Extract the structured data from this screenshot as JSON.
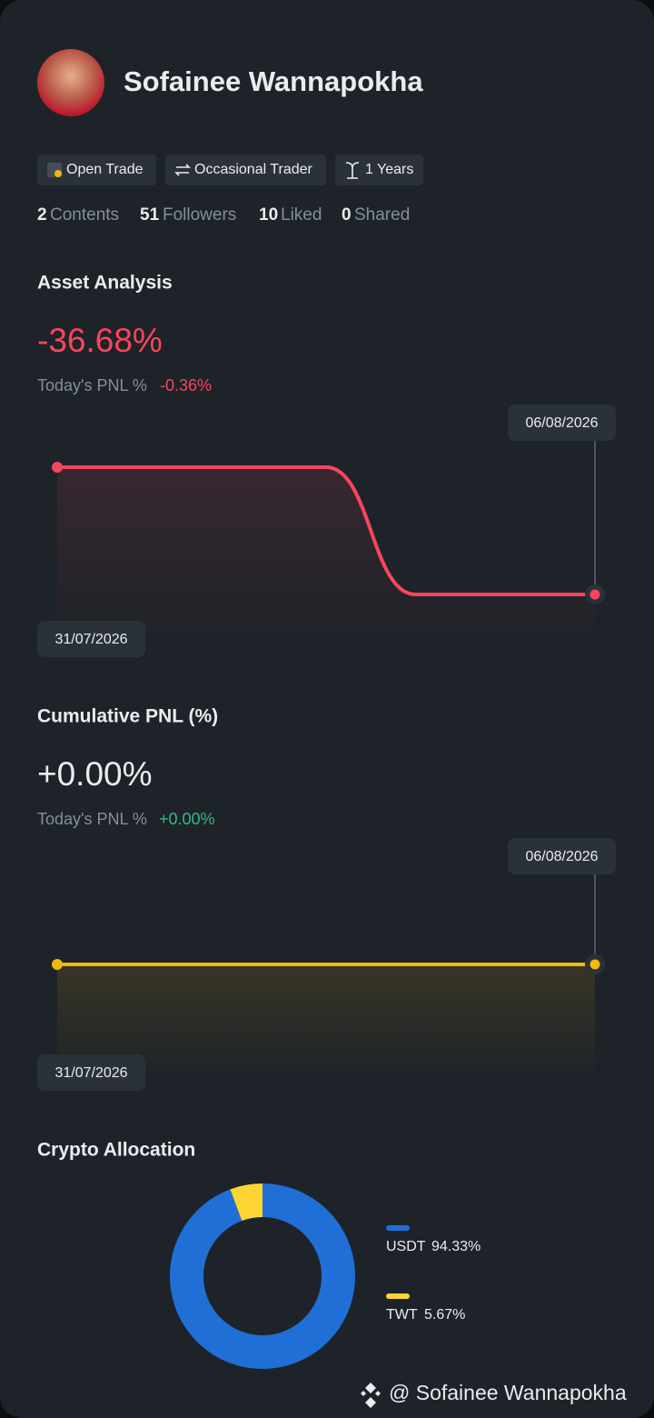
{
  "profile": {
    "name": "Sofainee Wannapokha",
    "tags": [
      "Open Trade",
      "Occasional Trader",
      "1 Years"
    ],
    "stats": [
      {
        "value": 2,
        "label": "Contents"
      },
      {
        "value": 51,
        "label": "Followers"
      },
      {
        "value": 10,
        "label": "Liked"
      },
      {
        "value": 0,
        "label": "Shared"
      }
    ]
  },
  "asset_analysis": {
    "title": "Asset Analysis",
    "value": "-36.68%",
    "today_label": "Today's PNL %",
    "today_value": "-0.36%",
    "chart": {
      "type": "line",
      "categories": [
        "31/07/2026",
        null,
        null,
        null,
        null,
        null,
        "06/08/2026"
      ],
      "series": [
        {
          "color": "#f6465d",
          "values": [
            0,
            0,
            0,
            0,
            -36.68,
            -36.68,
            -36.68
          ]
        }
      ]
    }
  },
  "cumulative_pnl": {
    "title": "Cumulative PNL (%)",
    "value": "+0.00%",
    "today_label": "Today's PNL %",
    "today_value": "+0.00%",
    "chart": {
      "type": "line",
      "categories": [
        "31/07/2026",
        null,
        null,
        null,
        null,
        null,
        "06/08/2026"
      ],
      "series": [
        {
          "color": "#f0b90b",
          "values": [
            0,
            0,
            0,
            0,
            0,
            0,
            0
          ]
        }
      ]
    }
  },
  "crypto_allocation": {
    "title": "Crypto Allocation",
    "chart": {
      "type": "pie",
      "categories": [
        "USDT",
        "TWT"
      ],
      "values": [
        94.33,
        5.67
      ],
      "value_labels": [
        "94.33%",
        "5.67%"
      ],
      "colors": [
        "#1f6fd6",
        "#fcd535"
      ]
    }
  },
  "footer": {
    "watermark": "@ Sofainee Wannapokha"
  }
}
